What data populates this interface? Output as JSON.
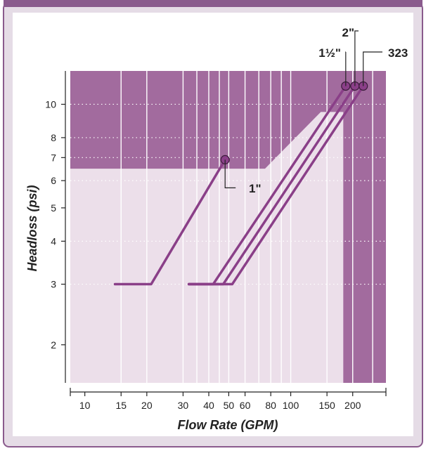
{
  "chart_data": {
    "type": "line",
    "title": "",
    "xlabel": "Flow Rate (GPM)",
    "ylabel": "Headloss (psi)",
    "x_scale": "log",
    "y_scale": "log",
    "xlim": [
      8.5,
      290
    ],
    "ylim": [
      1.55,
      12.5
    ],
    "x_ticks": [
      10,
      15,
      20,
      30,
      40,
      50,
      60,
      80,
      100,
      150,
      200
    ],
    "x_tick_labels": [
      "10",
      "15",
      "20",
      "30",
      "40",
      "50",
      "60",
      "80",
      "100",
      "150",
      "200"
    ],
    "y_ticks": [
      2,
      3,
      4,
      5,
      6,
      7,
      8,
      10
    ],
    "y_tick_labels": [
      "2",
      "3",
      "4",
      "5",
      "6",
      "7",
      "8",
      "10"
    ],
    "grid": true,
    "colors": {
      "accent": "#8a3f88",
      "band_dark": "#a26b9e",
      "band_light": "#ecdfea",
      "frame_bg": "#e5dce6",
      "frame_border": "#8a5b8d"
    },
    "series": [
      {
        "name": "1\"",
        "x": [
          14,
          21,
          48
        ],
        "y": [
          3,
          3,
          6.9
        ]
      },
      {
        "name": "1½\"",
        "x": [
          32,
          42,
          185
        ],
        "y": [
          3,
          3,
          11.3
        ]
      },
      {
        "name": "2\"",
        "x": [
          32,
          47,
          205
        ],
        "y": [
          3,
          3,
          11.3
        ]
      },
      {
        "name": "323",
        "x": [
          32,
          52,
          225
        ],
        "y": [
          3,
          3,
          11.3
        ]
      }
    ],
    "callouts": [
      "1\"",
      "1½\"",
      "2\"",
      "323"
    ]
  }
}
